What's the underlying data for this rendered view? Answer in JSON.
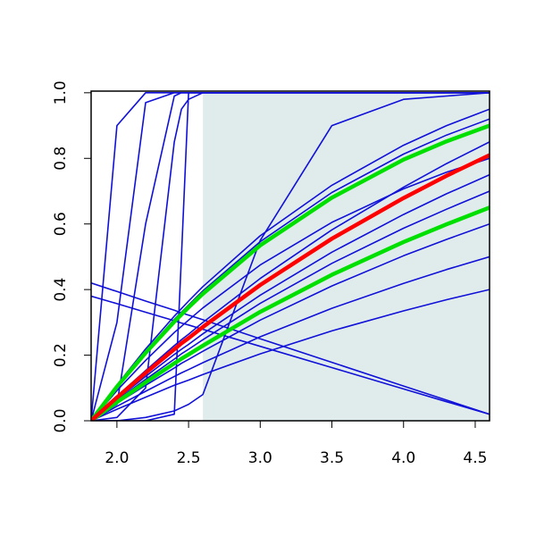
{
  "chart_data": {
    "type": "line",
    "x": [
      1.82,
      2.0,
      2.2,
      2.4,
      2.45,
      2.5,
      2.6,
      3.0,
      3.5,
      4.0,
      4.3,
      4.6
    ],
    "xlim": [
      1.82,
      4.6
    ],
    "ylim": [
      0,
      1.005
    ],
    "xticks": [
      {
        "value": 2,
        "label": "2.0"
      },
      2.5,
      {
        "value": 3,
        "label": "3.0"
      },
      3.5,
      {
        "value": 4,
        "label": "4.0"
      },
      4.5
    ],
    "yticks": [
      {
        "value": 0,
        "label": "0.0"
      },
      0.2,
      0.4,
      0.6,
      0.8,
      {
        "value": 1,
        "label": "1.0"
      }
    ],
    "shaded_region": {
      "x": [
        2.6,
        4.6
      ],
      "y": [
        0,
        1
      ],
      "color": "#e0ecec"
    },
    "series": [
      {
        "color": "#1010d8",
        "values": [
          0,
          0.035,
          0.072,
          0.108,
          0.116,
          0.124,
          0.141,
          0.204,
          0.274,
          0.335,
          0.369,
          0.4
        ]
      },
      {
        "color": "#1010d8",
        "values": [
          0,
          0.044,
          0.09,
          0.135,
          0.146,
          0.156,
          0.177,
          0.256,
          0.343,
          0.419,
          0.461,
          0.5
        ]
      },
      {
        "color": "#1010d8",
        "values": [
          0,
          0.053,
          0.108,
          0.161,
          0.175,
          0.187,
          0.212,
          0.307,
          0.411,
          0.503,
          0.553,
          0.6
        ]
      },
      {
        "color": "#1010d8",
        "values": [
          0,
          0.062,
          0.126,
          0.188,
          0.204,
          0.218,
          0.247,
          0.358,
          0.48,
          0.587,
          0.645,
          0.7
        ]
      },
      {
        "color": "#1010d8",
        "values": [
          0,
          0.066,
          0.135,
          0.202,
          0.218,
          0.233,
          0.265,
          0.383,
          0.514,
          0.629,
          0.692,
          0.75
        ]
      },
      {
        "color": "#1010d8",
        "values": [
          0,
          0.075,
          0.153,
          0.229,
          0.247,
          0.264,
          0.3,
          0.434,
          0.582,
          0.712,
          0.784,
          0.85
        ]
      },
      {
        "color": "#1010d8",
        "values": [
          0,
          0.092,
          0.184,
          0.269,
          0.288,
          0.307,
          0.344,
          0.475,
          0.605,
          0.707,
          0.758,
          0.8
        ]
      },
      {
        "color": "#1010d8",
        "values": [
          0,
          0.106,
          0.212,
          0.309,
          0.331,
          0.353,
          0.396,
          0.546,
          0.696,
          0.813,
          0.871,
          0.92
        ]
      },
      {
        "color": "#1010d8",
        "values": [
          0,
          0.109,
          0.219,
          0.319,
          0.342,
          0.365,
          0.409,
          0.564,
          0.718,
          0.84,
          0.9,
          0.95
        ]
      },
      {
        "color": "#1010d8",
        "values": [
          0,
          0.9,
          1,
          1,
          1,
          1,
          1,
          1,
          1,
          1,
          1,
          1
        ]
      },
      {
        "color": "#1010d8",
        "values": [
          0,
          0.3,
          0.97,
          1,
          1,
          1,
          1,
          1,
          1,
          1,
          1,
          1
        ]
      },
      {
        "color": "#1010d8",
        "values": [
          0,
          0.05,
          0.6,
          0.99,
          1,
          1,
          1,
          1,
          1,
          1,
          1,
          1
        ]
      },
      {
        "color": "#1010d8",
        "values": [
          0,
          0.01,
          0.1,
          0.85,
          0.95,
          0.98,
          1,
          1,
          1,
          1,
          1,
          1
        ]
      },
      {
        "color": "#1010d8",
        "values": [
          0,
          0,
          0,
          0.02,
          0.5,
          1,
          1,
          1,
          1,
          1,
          1,
          1
        ]
      },
      {
        "color": "#1010d8",
        "values": [
          0,
          0,
          0.01,
          0.03,
          0.04,
          0.05,
          0.08,
          0.55,
          0.9,
          0.98,
          0.99,
          1
        ]
      },
      {
        "color": "#1010d8",
        "values": [
          0.42,
          0.394,
          0.365,
          0.337,
          0.329,
          0.322,
          0.308,
          0.25,
          0.178,
          0.106,
          0.063,
          0.02
        ]
      },
      {
        "color": "#1010d8",
        "values": [
          0.38,
          0.357,
          0.331,
          0.305,
          0.298,
          0.292,
          0.279,
          0.227,
          0.162,
          0.097,
          0.058,
          0.02
        ]
      },
      {
        "color": "#00e000",
        "values": [
          0,
          0.104,
          0.207,
          0.302,
          0.324,
          0.346,
          0.387,
          0.535,
          0.68,
          0.796,
          0.852,
          0.9
        ]
      },
      {
        "color": "#00e000",
        "values": [
          0,
          0.057,
          0.117,
          0.175,
          0.189,
          0.202,
          0.229,
          0.332,
          0.445,
          0.545,
          0.599,
          0.65
        ]
      },
      {
        "color": "#ff0000",
        "values": [
          0,
          0.071,
          0.146,
          0.218,
          0.236,
          0.252,
          0.286,
          0.414,
          0.555,
          0.679,
          0.747,
          0.81
        ]
      }
    ]
  }
}
